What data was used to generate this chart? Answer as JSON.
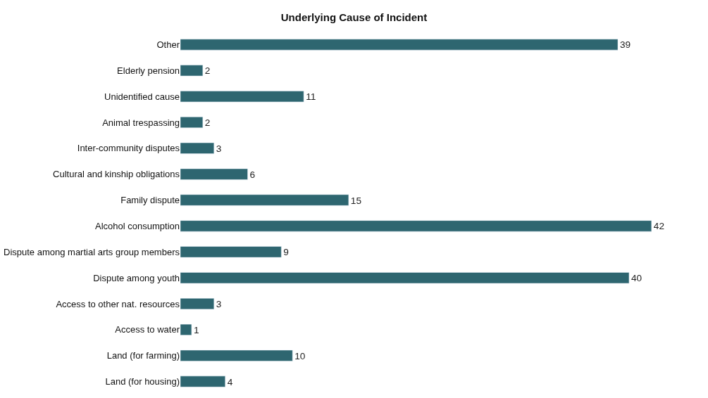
{
  "chart_data": {
    "type": "bar",
    "orientation": "horizontal",
    "title": "Underlying Cause of Incident",
    "categories": [
      "Other",
      "Elderly pension",
      "Unidentified cause",
      "Animal trespassing",
      "Inter-community disputes",
      "Cultural and kinship obligations",
      "Family dispute",
      "Alcohol consumption",
      "Dispute among martial arts group members",
      "Dispute among youth",
      "Access to other nat. resources",
      "Access to water",
      "Land (for farming)",
      "Land (for housing)"
    ],
    "values": [
      39,
      2,
      11,
      2,
      3,
      6,
      15,
      42,
      9,
      40,
      3,
      1,
      10,
      4
    ],
    "color": "#2e6670",
    "data_labels": true
  }
}
